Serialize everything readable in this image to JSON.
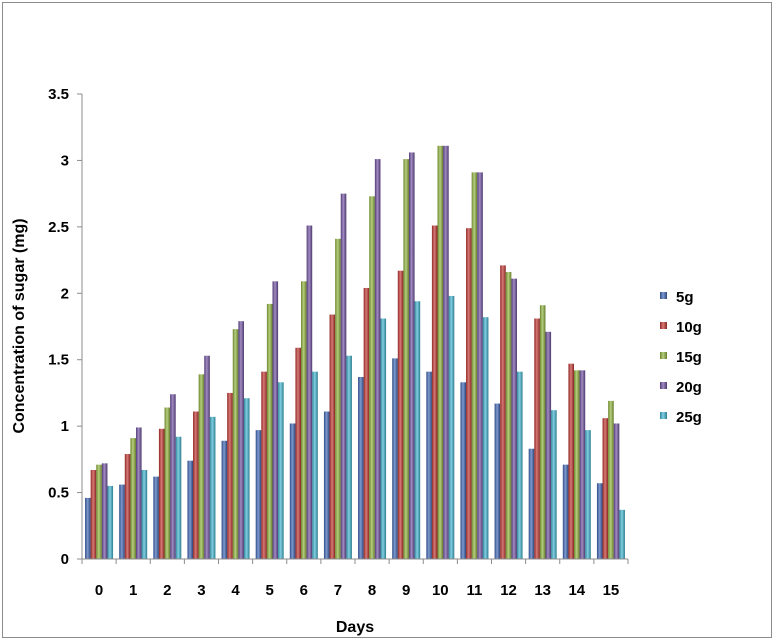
{
  "chart_data": {
    "type": "bar",
    "title": "",
    "xlabel": "Days",
    "ylabel": "Concentration of sugar (mg)",
    "categories": [
      "0",
      "1",
      "2",
      "3",
      "4",
      "5",
      "6",
      "7",
      "8",
      "9",
      "10",
      "11",
      "12",
      "13",
      "14",
      "15"
    ],
    "ylim": [
      0,
      3.5
    ],
    "yticks": [
      "0",
      "0.5",
      "1",
      "1.5",
      "2",
      "2.5",
      "3",
      "3.5"
    ],
    "grid": false,
    "legend_position": "right",
    "series": [
      {
        "name": "5g",
        "color": "#3a63b3",
        "values": [
          0.46,
          0.56,
          0.62,
          0.74,
          0.89,
          0.97,
          1.02,
          1.11,
          1.37,
          1.51,
          1.41,
          1.33,
          1.17,
          0.83,
          0.71,
          0.57
        ]
      },
      {
        "name": "10g",
        "color": "#c0332e",
        "values": [
          0.67,
          0.79,
          0.98,
          1.11,
          1.25,
          1.41,
          1.59,
          1.84,
          2.04,
          2.17,
          2.51,
          2.49,
          2.21,
          1.81,
          1.47,
          1.06
        ]
      },
      {
        "name": "15g",
        "color": "#8fb33a",
        "values": [
          0.71,
          0.91,
          1.14,
          1.39,
          1.73,
          1.92,
          2.09,
          2.41,
          2.73,
          3.01,
          3.11,
          2.91,
          2.16,
          1.91,
          1.42,
          1.19
        ]
      },
      {
        "name": "20g",
        "color": "#6e4fa0",
        "values": [
          0.72,
          0.99,
          1.24,
          1.53,
          1.79,
          2.09,
          2.51,
          2.75,
          3.01,
          3.06,
          3.11,
          2.91,
          2.11,
          1.71,
          1.42,
          1.02
        ]
      },
      {
        "name": "25g",
        "color": "#3fb4cf",
        "values": [
          0.55,
          0.67,
          0.92,
          1.07,
          1.21,
          1.33,
          1.41,
          1.53,
          1.81,
          1.94,
          1.98,
          1.82,
          1.41,
          1.12,
          0.97,
          0.37
        ]
      }
    ]
  }
}
